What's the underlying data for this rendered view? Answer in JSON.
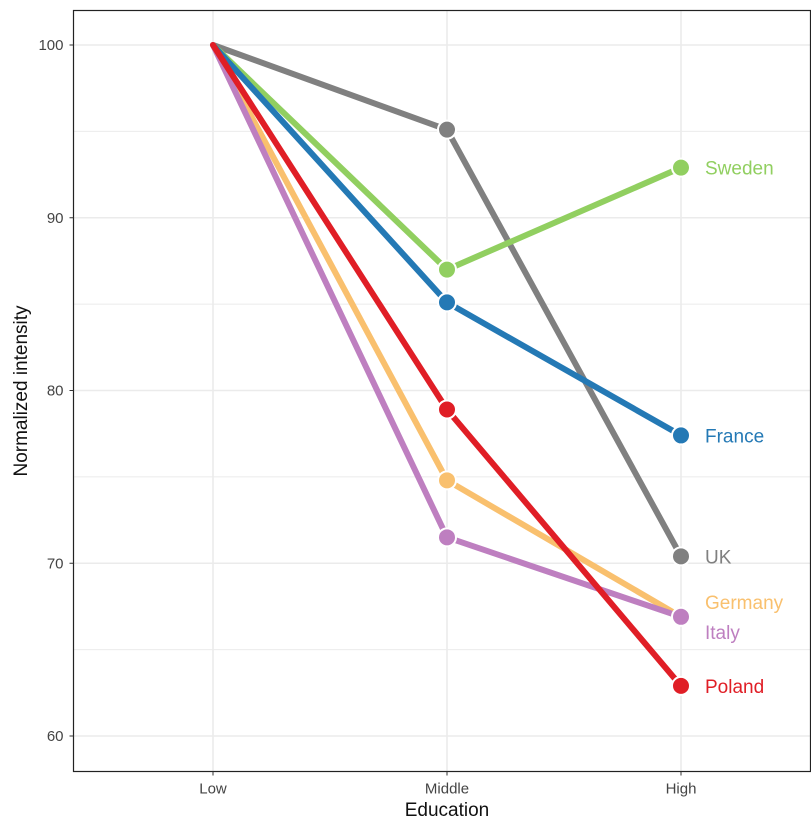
{
  "chart_data": {
    "type": "line",
    "title": "",
    "xlabel": "Education",
    "ylabel": "Normalized intensity",
    "categories": [
      "Low",
      "Middle",
      "High"
    ],
    "yticks": [
      60,
      70,
      80,
      90,
      100
    ],
    "ylim": [
      58,
      102
    ],
    "grid": true,
    "legend": "direct labels at right end of each line",
    "series": [
      {
        "name": "UK",
        "color": "#808080",
        "values": [
          100,
          95.1,
          70.4
        ]
      },
      {
        "name": "Sweden",
        "color": "#91cf60",
        "values": [
          100,
          87.0,
          92.9
        ]
      },
      {
        "name": "France",
        "color": "#2479b5",
        "values": [
          100,
          85.1,
          77.4
        ]
      },
      {
        "name": "Germany",
        "color": "#f9c06e",
        "values": [
          100,
          74.8,
          66.9
        ]
      },
      {
        "name": "Italy",
        "color": "#be7fc0",
        "values": [
          100,
          71.5,
          66.9
        ]
      },
      {
        "name": "Poland",
        "color": "#e01e26",
        "values": [
          100,
          78.9,
          62.9
        ]
      }
    ]
  }
}
